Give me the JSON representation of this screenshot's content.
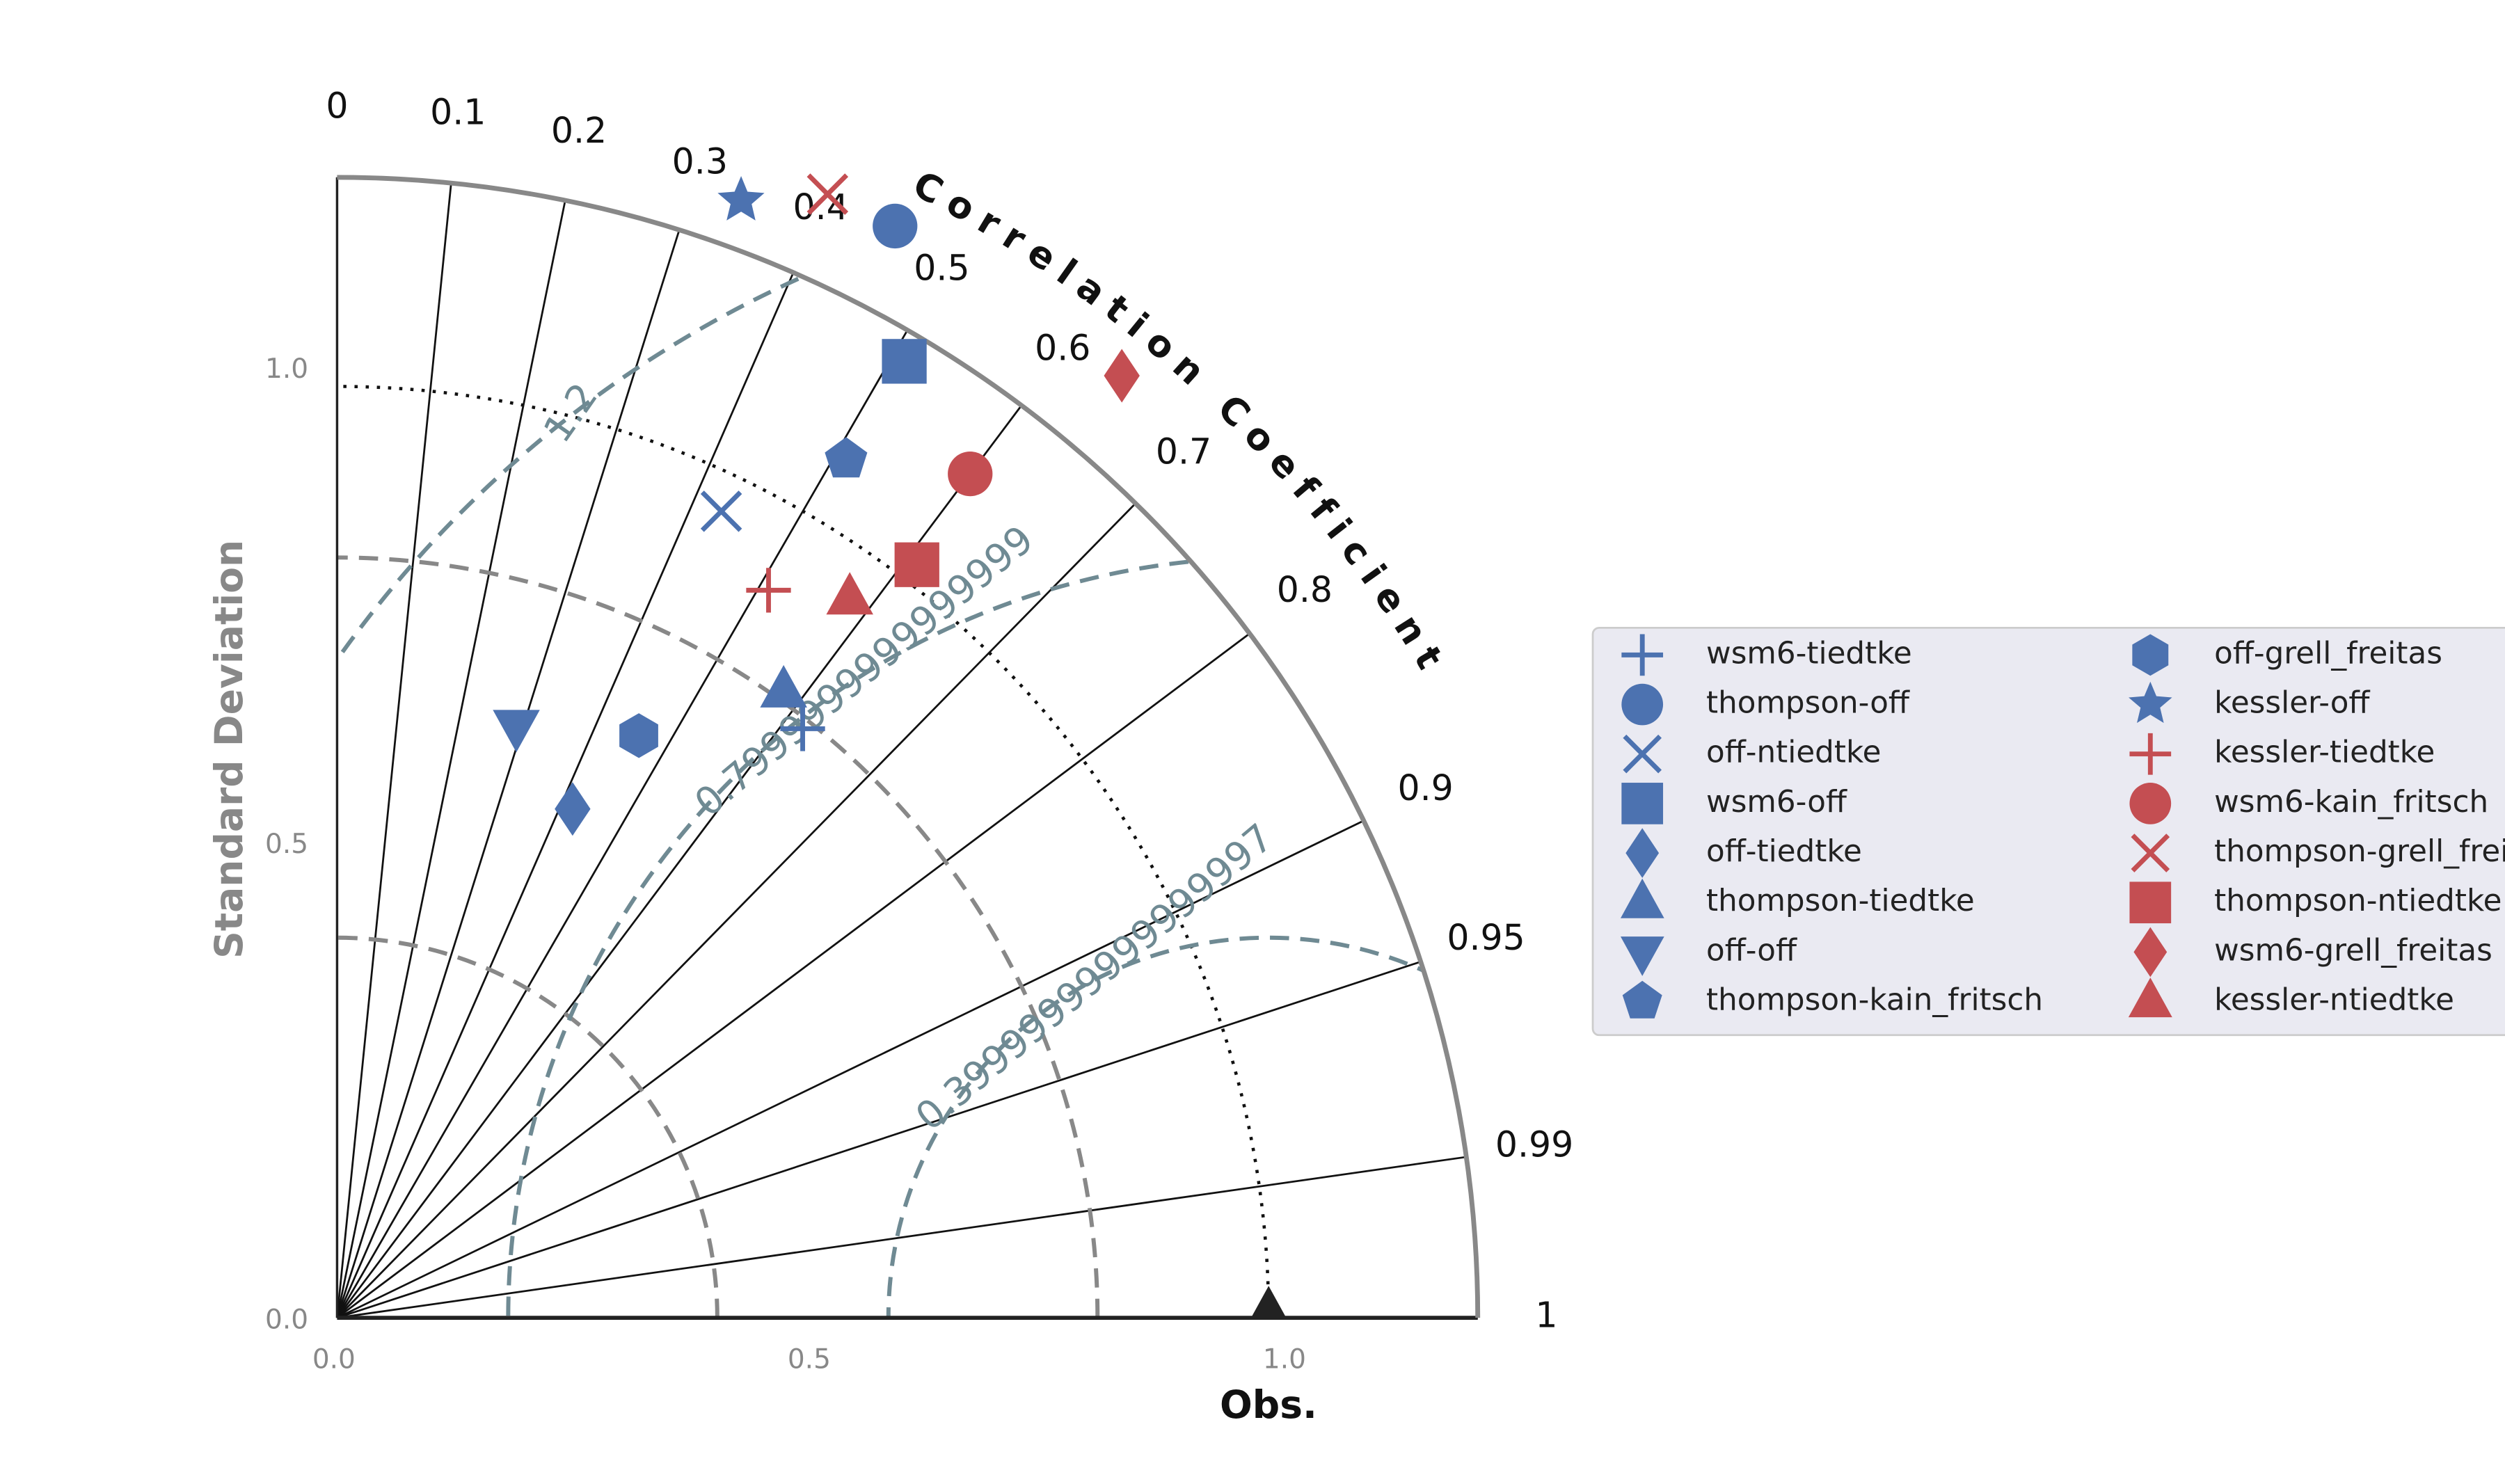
{
  "chart_data": {
    "type": "taylor",
    "title": "Correlation Coefficient",
    "ylabel": "Standard Deviation",
    "rlim": [
      0,
      1.2
    ],
    "std_ticks": [
      {
        "value": 0,
        "label": "0.0"
      },
      {
        "value": 0.5,
        "label": "0.5"
      },
      {
        "value": 1,
        "label": "1.0"
      }
    ],
    "corr_ticks": [
      0,
      0.1,
      0.2,
      0.3,
      0.4,
      0.5,
      0.6,
      0.7,
      0.8,
      0.9,
      0.95,
      0.99,
      1
    ],
    "std_arcs": [
      0.4,
      0.8
    ],
    "rms_contours": [
      0.39999999999999997,
      0.7999999999999999,
      1.2
    ],
    "reference": {
      "name": "Obs.",
      "std": 0.98,
      "color": "#222222"
    },
    "series": [
      {
        "name": "wsm6-tiedtke",
        "color": "#4c72b0",
        "marker": "+",
        "std": 0.79,
        "corr": 0.62
      },
      {
        "name": "thompson-off",
        "color": "#4c72b0",
        "marker": "o",
        "std": 1.29,
        "corr": 0.455
      },
      {
        "name": "off-ntiedtke",
        "color": "#4c72b0",
        "marker": "x",
        "std": 0.94,
        "corr": 0.43
      },
      {
        "name": "wsm6-off",
        "color": "#4c72b0",
        "marker": "s",
        "std": 1.17,
        "corr": 0.51
      },
      {
        "name": "off-tiedtke",
        "color": "#4c72b0",
        "marker": "d",
        "std": 0.59,
        "corr": 0.42
      },
      {
        "name": "thompson-tiedtke",
        "color": "#4c72b0",
        "marker": "^",
        "std": 0.81,
        "corr": 0.58
      },
      {
        "name": "off-off",
        "color": "#4c72b0",
        "marker": "v",
        "std": 0.65,
        "corr": 0.29
      },
      {
        "name": "thompson-kain_fritsch",
        "color": "#4c72b0",
        "marker": "p",
        "std": 1.05,
        "corr": 0.51
      },
      {
        "name": "off-grell_freitas",
        "color": "#4c72b0",
        "marker": "h",
        "std": 0.69,
        "corr": 0.46
      },
      {
        "name": "kessler-off",
        "color": "#4c72b0",
        "marker": "*",
        "std": 1.25,
        "corr": 0.34
      },
      {
        "name": "kessler-tiedtke",
        "color": "#c44e52",
        "marker": "+",
        "std": 0.89,
        "corr": 0.51
      },
      {
        "name": "wsm6-kain_fritsch",
        "color": "#c44e52",
        "marker": "o",
        "std": 1.11,
        "corr": 0.6
      },
      {
        "name": "thompson-grell_freitas",
        "color": "#c44e52",
        "marker": "x",
        "std": 1.29,
        "corr": 0.4
      },
      {
        "name": "thompson-ntiedtke",
        "color": "#c44e52",
        "marker": "s",
        "std": 1.0,
        "corr": 0.61
      },
      {
        "name": "wsm6-grell_freitas",
        "color": "#c44e52",
        "marker": "d",
        "std": 1.29,
        "corr": 0.64
      },
      {
        "name": "kessler-ntiedtke",
        "color": "#c44e52",
        "marker": "^",
        "std": 0.93,
        "corr": 0.58
      }
    ]
  }
}
